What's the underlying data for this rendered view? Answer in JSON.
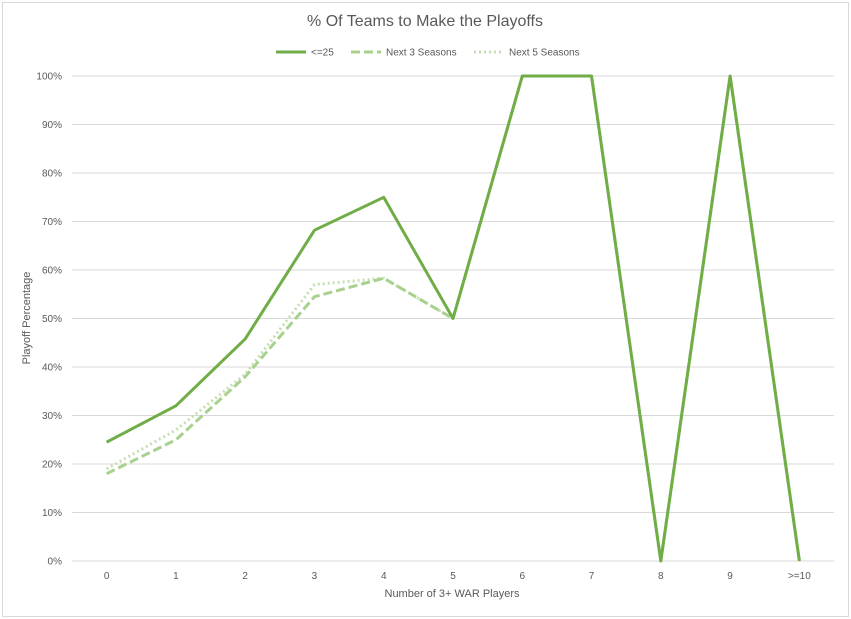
{
  "chart_data": {
    "type": "line",
    "title": "% Of Teams to Make the Playoffs",
    "xlabel": "Number of 3+ WAR Players",
    "ylabel": "Playoff Percentage",
    "categories": [
      "0",
      "1",
      "2",
      "3",
      "4",
      "5",
      "6",
      "7",
      "8",
      "9",
      ">=10"
    ],
    "ylim": [
      0,
      100
    ],
    "yticks": [
      "0%",
      "10%",
      "20%",
      "30%",
      "40%",
      "50%",
      "60%",
      "70%",
      "80%",
      "90%",
      "100%"
    ],
    "grid": true,
    "legend_position": "top",
    "series": [
      {
        "name": "<=25",
        "values": [
          24.5,
          32,
          45.8,
          68.2,
          75,
          50,
          100,
          100,
          0,
          100,
          0
        ],
        "color": "#70ad47",
        "style": "solid"
      },
      {
        "name": "Next 3 Seasons",
        "values": [
          18,
          25,
          38,
          54.5,
          58.3,
          50,
          100,
          100,
          0,
          100,
          0
        ],
        "color": "#a9d18e",
        "style": "dashed"
      },
      {
        "name": "Next 5 Seasons",
        "values": [
          19,
          27,
          38.5,
          57,
          58.3,
          50,
          100,
          100,
          0,
          100,
          0
        ],
        "color": "#c5e0b4",
        "style": "dotted"
      }
    ]
  }
}
